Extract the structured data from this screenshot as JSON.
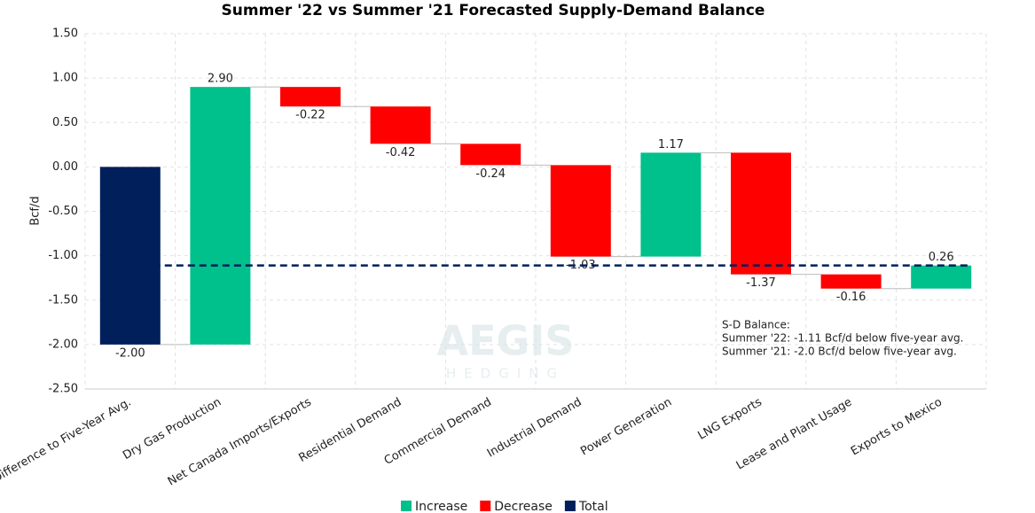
{
  "chart_data": {
    "type": "waterfall",
    "title": "Summer '22 vs Summer '21 Forecasted Supply-Demand Balance",
    "y_label": "Bcf/d",
    "categories": [
      "Difference to Five-Year Avg.",
      "Dry Gas Production",
      "Net Canada Imports/Exports",
      "Residential Demand",
      "Commercial Demand",
      "Industrial Demand",
      "Power Generation",
      "LNG Exports",
      "Lease and Plant Usage",
      "Exports to Mexico"
    ],
    "measures": [
      "total",
      "relative",
      "relative",
      "relative",
      "relative",
      "relative",
      "relative",
      "relative",
      "relative",
      "relative"
    ],
    "values": [
      -2.0,
      2.9,
      -0.22,
      -0.42,
      -0.24,
      -1.03,
      1.17,
      -1.37,
      -0.16,
      0.26
    ],
    "value_labels": [
      "-2.00",
      "2.90",
      "-0.22",
      "-0.42",
      "-0.24",
      "-1.03",
      "1.17",
      "-1.37",
      "-0.16",
      "0.26"
    ],
    "legend": [
      {
        "name": "Increase",
        "color": "#00c08b"
      },
      {
        "name": "Decrease",
        "color": "#ff0000"
      },
      {
        "name": "Total",
        "color": "#001f5b"
      }
    ],
    "ylim": [
      -2.5,
      1.5
    ],
    "yticks": [
      {
        "value": 1.5,
        "label": "1.50"
      },
      {
        "value": 1.0,
        "label": "1.00"
      },
      {
        "value": 0.5,
        "label": "0.50"
      },
      {
        "value": 0,
        "label": "0.00"
      },
      {
        "value": -0.5,
        "label": "-0.50"
      },
      {
        "value": -1.0,
        "label": "-1.00"
      },
      {
        "value": -1.5,
        "label": "-1.50"
      },
      {
        "value": -2.0,
        "label": "-2.00"
      },
      {
        "value": -2.5,
        "label": "-2.50"
      }
    ],
    "grid": true,
    "reference_line": -1.11,
    "annotation": [
      "S-D Balance:",
      "Summer '22: -1.11 Bcf/d below five-year avg.",
      "Summer '21: -2.0 Bcf/d below five-year avg."
    ],
    "watermark": [
      "AEGIS",
      "HEDGING"
    ]
  }
}
